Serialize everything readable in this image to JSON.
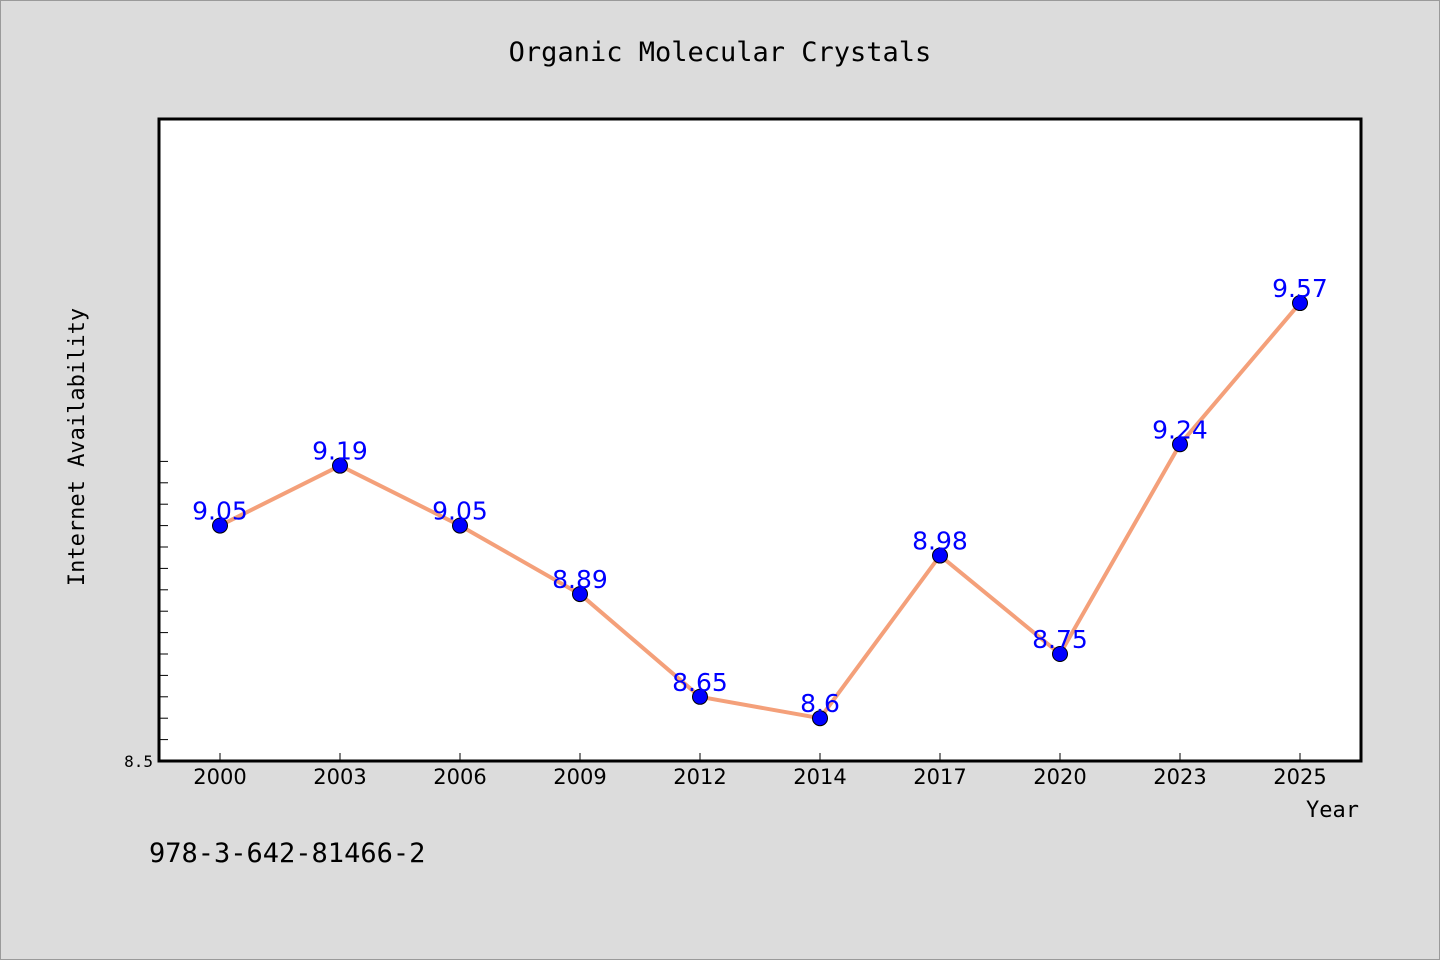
{
  "chart_data": {
    "type": "line",
    "title": "Organic Molecular Crystals",
    "xlabel": "Year",
    "ylabel": "Internet Availability",
    "categories": [
      "2000",
      "2003",
      "2006",
      "2009",
      "2012",
      "2014",
      "2017",
      "2020",
      "2023",
      "2025"
    ],
    "series": [
      {
        "values": [
          9.05,
          9.19,
          9.05,
          8.89,
          8.65,
          8.6,
          8.98,
          8.75,
          9.24,
          9.57
        ],
        "data_labels": [
          "9.05",
          "9.19",
          "9.05",
          "8.89",
          "8.65",
          "8.6",
          "8.98",
          "8.75",
          "9.24",
          "9.57"
        ]
      }
    ],
    "ylim": [
      8.5,
      10.0
    ],
    "ytick_labels": [
      "8.5"
    ],
    "grid": false,
    "colors": {
      "line": "#f4a07a",
      "marker": "#0000ff",
      "label": "#0000ff",
      "plot_background": "#ffffff",
      "page_background": "#dcdcdc"
    }
  },
  "footnote": "978-3-642-81466-2"
}
